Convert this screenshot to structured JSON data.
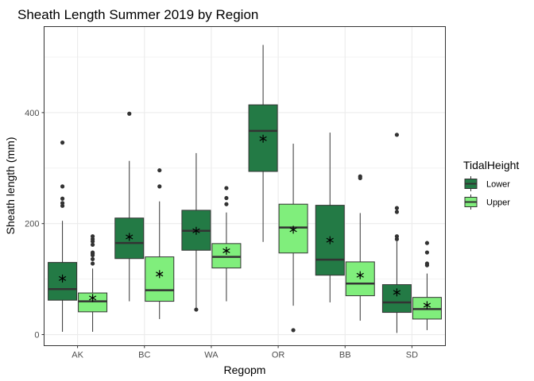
{
  "chart_data": {
    "type": "boxplot",
    "title": "Sheath Length Summer 2019 by Region",
    "xlabel": "Regopm",
    "ylabel": "Sheath length (mm)",
    "ylim": [
      -20,
      555
    ],
    "yticks": [
      0,
      200,
      400
    ],
    "grid": true,
    "legend_position": "right",
    "legend_title": "TidalHeight",
    "categories": [
      "AK",
      "BC",
      "WA",
      "OR",
      "BB",
      "SD"
    ],
    "series": [
      {
        "name": "Lower",
        "color": "#237a45",
        "boxes": [
          {
            "category": "AK",
            "min": 5,
            "q1": 62,
            "median": 82,
            "q3": 130,
            "max": 205,
            "mean": 101,
            "outliers": [
              232,
              237,
              245,
              267,
              346
            ]
          },
          {
            "category": "BC",
            "min": 60,
            "q1": 137,
            "median": 165,
            "q3": 210,
            "max": 313,
            "mean": 176,
            "outliers": [
              398
            ]
          },
          {
            "category": "WA",
            "min": 45,
            "q1": 152,
            "median": 187,
            "q3": 224,
            "max": 327,
            "mean": 187,
            "outliers": [
              45
            ]
          },
          {
            "category": "OR",
            "min": 167,
            "q1": 294,
            "median": 367,
            "q3": 414,
            "max": 522,
            "mean": 353,
            "outliers": []
          },
          {
            "category": "BB",
            "min": 58,
            "q1": 107,
            "median": 135,
            "q3": 233,
            "max": 364,
            "mean": 170,
            "outliers": []
          },
          {
            "category": "SD",
            "min": 3,
            "q1": 40,
            "median": 58,
            "q3": 90,
            "max": 168,
            "mean": 76,
            "outliers": [
              172,
              177,
              221,
              228,
              360
            ]
          }
        ]
      },
      {
        "name": "Upper",
        "color": "#80ee7c",
        "boxes": [
          {
            "category": "AK",
            "min": 5,
            "q1": 41,
            "median": 60,
            "q3": 75,
            "max": 119,
            "mean": 66,
            "outliers": [
              128,
              136,
              143,
              146,
              148,
              162,
              168,
              172,
              177
            ]
          },
          {
            "category": "BC",
            "min": 28,
            "q1": 60,
            "median": 80,
            "q3": 140,
            "max": 240,
            "mean": 109,
            "outliers": [
              267,
              296
            ]
          },
          {
            "category": "WA",
            "min": 60,
            "q1": 120,
            "median": 140,
            "q3": 164,
            "max": 220,
            "mean": 151,
            "outliers": [
              235,
              246,
              264
            ]
          },
          {
            "category": "OR",
            "min": 52,
            "q1": 147,
            "median": 193,
            "q3": 235,
            "max": 344,
            "mean": 189,
            "outliers": [
              8
            ]
          },
          {
            "category": "BB",
            "min": 25,
            "q1": 70,
            "median": 92,
            "q3": 131,
            "max": 219,
            "mean": 107,
            "outliers": [
              282,
              285
            ]
          },
          {
            "category": "SD",
            "min": 8,
            "q1": 28,
            "median": 46,
            "q3": 67,
            "max": 110,
            "mean": 53,
            "outliers": [
              125,
              128,
              148,
              165
            ]
          }
        ]
      }
    ]
  }
}
